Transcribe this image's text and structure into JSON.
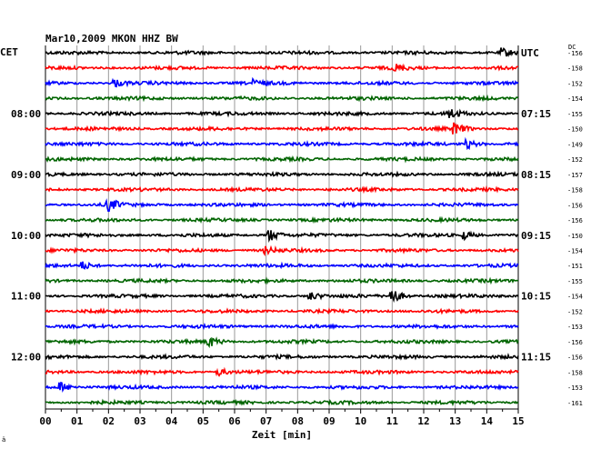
{
  "chart_data": {
    "type": "line",
    "title": "Mar10,2009   MKON HHZ BW",
    "left_zone_label": "CET",
    "right_zone_label": "UTC",
    "dc_header": "DC",
    "xlabel": "Zeit [min]",
    "xlim": [
      0,
      15
    ],
    "x_ticks": [
      "00",
      "01",
      "02",
      "03",
      "04",
      "05",
      "06",
      "07",
      "08",
      "09",
      "10",
      "11",
      "12",
      "13",
      "14",
      "15"
    ],
    "line_interval_min": 15,
    "trace_colors": [
      "#000000",
      "#ff0000",
      "#0000ff",
      "#006400"
    ],
    "left_hour_labels": [
      {
        "line": 4,
        "label": "08:00"
      },
      {
        "line": 8,
        "label": "09:00"
      },
      {
        "line": 12,
        "label": "10:00"
      },
      {
        "line": 16,
        "label": "11:00"
      },
      {
        "line": 20,
        "label": "12:00"
      }
    ],
    "right_hour_labels": [
      {
        "line": 0,
        "label": "UTC"
      },
      {
        "line": 4,
        "label": "07:15"
      },
      {
        "line": 8,
        "label": "08:15"
      },
      {
        "line": 12,
        "label": "09:15"
      },
      {
        "line": 16,
        "label": "10:15"
      },
      {
        "line": 20,
        "label": "11:15"
      }
    ],
    "dc_offsets": [
      "-156",
      "-158",
      "-152",
      "-154",
      "-155",
      "-150",
      "-149",
      "-152",
      "-157",
      "-158",
      "-156",
      "-156",
      "-150",
      "-154",
      "-151",
      "-155",
      "-154",
      "-152",
      "-153",
      "-156",
      "-156",
      "-158",
      "-153",
      "-161"
    ],
    "events": [
      {
        "line": 0,
        "minute": 14.5,
        "amp": 2.0
      },
      {
        "line": 1,
        "minute": 11.1,
        "amp": 1.6
      },
      {
        "line": 2,
        "minute": 2.2,
        "amp": 1.8
      },
      {
        "line": 2,
        "minute": 6.6,
        "amp": 1.4
      },
      {
        "line": 4,
        "minute": 12.8,
        "amp": 2.5
      },
      {
        "line": 5,
        "minute": 13.0,
        "amp": 2.6
      },
      {
        "line": 6,
        "minute": 13.4,
        "amp": 2.0
      },
      {
        "line": 10,
        "minute": 2.0,
        "amp": 3.0
      },
      {
        "line": 12,
        "minute": 7.1,
        "amp": 3.0
      },
      {
        "line": 12,
        "minute": 13.3,
        "amp": 1.8
      },
      {
        "line": 13,
        "minute": 7.0,
        "amp": 1.6
      },
      {
        "line": 14,
        "minute": 1.2,
        "amp": 1.8
      },
      {
        "line": 16,
        "minute": 8.4,
        "amp": 2.0
      },
      {
        "line": 16,
        "minute": 11.0,
        "amp": 3.8
      },
      {
        "line": 19,
        "minute": 5.2,
        "amp": 2.4
      },
      {
        "line": 21,
        "minute": 5.5,
        "amp": 1.6
      },
      {
        "line": 22,
        "minute": 0.5,
        "amp": 2.2
      }
    ]
  },
  "footer_mark": "ä"
}
